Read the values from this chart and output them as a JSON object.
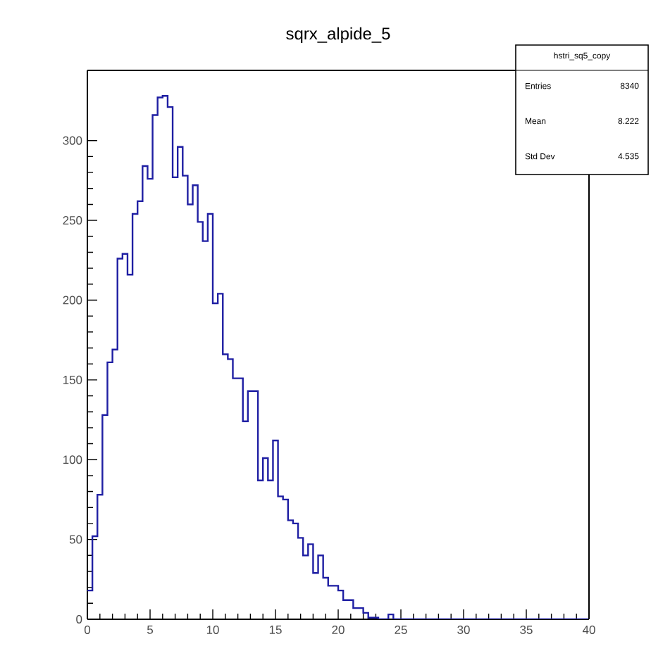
{
  "chart_data": {
    "type": "histogram",
    "title": "sqrx_alpide_5",
    "bins": [
      0,
      0.4,
      0.8,
      1.2,
      1.6,
      2,
      2.4,
      2.8,
      3.2,
      3.6,
      4,
      4.4,
      4.8,
      5.2,
      5.6,
      6,
      6.4,
      6.8,
      7.2,
      7.6,
      8,
      8.4,
      8.8,
      9.2,
      9.6,
      10,
      10.4,
      10.8,
      11.2,
      11.6,
      12,
      12.4,
      12.8,
      13.2,
      13.6,
      14,
      14.4,
      14.8,
      15.2,
      15.6,
      16,
      16.4,
      16.8,
      17.2,
      17.6,
      18,
      18.4,
      18.8,
      19.2,
      19.6,
      20,
      20.4,
      20.8,
      21.2,
      21.6,
      22,
      22.4,
      22.8,
      23.2,
      23.6,
      24,
      24.4,
      24.8,
      25.2,
      25.6,
      26,
      26.4,
      26.8,
      27.2,
      27.6,
      28,
      28.4,
      28.8,
      29.2,
      29.6,
      30,
      30.4,
      30.8,
      31.2,
      31.6,
      32,
      32.4,
      32.8,
      33.2,
      33.6,
      34,
      34.4,
      34.8,
      35.2,
      35.6,
      36,
      36.4,
      36.8,
      37.2,
      37.6,
      38,
      38.4,
      38.8,
      39.2,
      39.6,
      40
    ],
    "values": [
      18,
      52,
      78,
      128,
      161,
      169,
      226,
      229,
      216,
      254,
      262,
      284,
      276,
      316,
      327,
      328,
      321,
      277,
      296,
      278,
      260,
      272,
      249,
      237,
      254,
      198,
      204,
      166,
      163,
      151,
      151,
      124,
      143,
      143,
      87,
      101,
      87,
      112,
      77,
      75,
      62,
      60,
      51,
      40,
      47,
      29,
      40,
      26,
      21,
      21,
      18,
      12,
      12,
      7,
      7,
      4,
      1,
      1,
      0,
      0,
      3,
      0,
      0,
      0,
      0,
      0,
      0,
      0,
      0,
      0,
      0,
      0,
      0,
      0,
      0,
      0,
      0,
      0,
      0,
      0,
      0,
      0,
      0,
      0,
      0,
      0,
      0,
      0,
      0,
      0,
      0,
      0,
      0,
      0,
      0,
      0,
      0,
      0,
      0,
      0
    ],
    "color": "#1f1fa3",
    "xlim": [
      0,
      40
    ],
    "xticks": [
      0,
      5,
      10,
      15,
      20,
      25,
      30,
      35,
      40
    ],
    "ylim": [
      0,
      344
    ],
    "yticks": [
      0,
      50,
      100,
      150,
      200,
      250,
      300
    ],
    "annotations": [
      "hstri_sq5_copy",
      "Entries",
      "8340",
      "Mean",
      "8.222",
      "Std Dev",
      "4.535"
    ]
  }
}
